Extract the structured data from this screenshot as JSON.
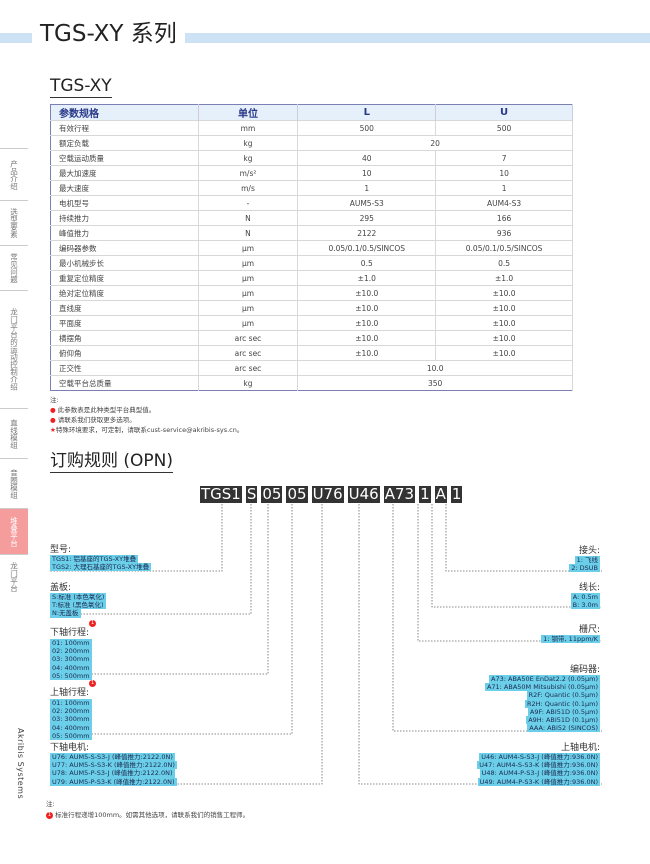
{
  "header": {
    "title": "TGS-XY 系列",
    "subtitle": "TGS-XY"
  },
  "sidebar": [
    {
      "label": "产品介绍"
    },
    {
      "label": "选型要素"
    },
    {
      "label": "常见问题"
    },
    {
      "label": "龙门平台的运动控制介绍"
    },
    {
      "label": "直线模组"
    },
    {
      "label": "音圈模组"
    },
    {
      "label": "堆叠平台",
      "active": true
    },
    {
      "label": "龙门平台"
    }
  ],
  "brand": "Akribis Systems",
  "table": {
    "headers": [
      "参数规格",
      "单位",
      "L",
      "U"
    ],
    "rows": [
      [
        "有效行程",
        "mm",
        "500",
        "500"
      ],
      [
        "额定负载",
        "kg",
        "20"
      ],
      [
        "空载运动质量",
        "kg",
        "40",
        "7"
      ],
      [
        "最大加速度",
        "m/s²",
        "10",
        "10"
      ],
      [
        "最大速度",
        "m/s",
        "1",
        "1"
      ],
      [
        "电机型号",
        "-",
        "AUM5-S3",
        "AUM4-S3"
      ],
      [
        "持续推力",
        "N",
        "295",
        "166"
      ],
      [
        "峰值推力",
        "N",
        "2122",
        "936"
      ],
      [
        "编码器参数",
        "μm",
        "0.05/0.1/0.5/SINCOS",
        "0.05/0.1/0.5/SINCOS"
      ],
      [
        "最小机械步长",
        "μm",
        "0.5",
        "0.5"
      ],
      [
        "重复定位精度",
        "μm",
        "±1.0",
        "±1.0"
      ],
      [
        "绝对定位精度",
        "μm",
        "±10.0",
        "±10.0"
      ],
      [
        "直线度",
        "μm",
        "±10.0",
        "±10.0"
      ],
      [
        "平面度",
        "μm",
        "±10.0",
        "±10.0"
      ],
      [
        "横摆角",
        "arc sec",
        "±10.0",
        "±10.0"
      ],
      [
        "俯仰角",
        "arc sec",
        "±10.0",
        "±10.0"
      ],
      [
        "正交性",
        "arc sec",
        "10.0"
      ],
      [
        "空载平台总质量",
        "kg",
        "350"
      ]
    ]
  },
  "notes": {
    "title": "注:",
    "items": [
      "此参数表是此种类型平台典型值。",
      "请联系我们获取更多选项。",
      "特殊环境要求，可定制，请联系cust-service@akribis-sys.cn。"
    ]
  },
  "opn": {
    "title": "订购规则 (OPN)",
    "codes": [
      "TGS1",
      "S",
      "05",
      "05",
      "U76",
      "U46",
      "A73",
      "1",
      "A",
      "1"
    ],
    "left": [
      {
        "label": "型号:",
        "options": [
          "TGS1: 铝基座的TGS-XY堆叠",
          "TGS2: 大理石基座的TGS-XY堆叠"
        ]
      },
      {
        "label": "盖板:",
        "options": [
          "S:标准 (本色氧化)",
          "T:标准 (黑色氧化)",
          "N:无盖板"
        ]
      },
      {
        "label": "下轴行程:",
        "note": "1",
        "options": [
          "01: 100mm",
          "02: 200mm",
          "03: 300mm",
          "04: 400mm",
          "05: 500mm"
        ]
      },
      {
        "label": "上轴行程:",
        "note": "1",
        "options": [
          "01: 100mm",
          "02: 200mm",
          "03: 300mm",
          "04: 400mm",
          "05: 500mm"
        ]
      },
      {
        "label": "下轴电机:",
        "options": [
          "U76: AUM5-S-S3-J (峰值推力:2122.0N)",
          "U77: AUM5-S-S3-K (峰值推力:2122.0N)",
          "U78: AUM5-P-S3-J (峰值推力:2122.0N)",
          "U79: AUM5-P-S3-K (峰值推力:2122.0N)"
        ]
      }
    ],
    "right": [
      {
        "label": "接头:",
        "options": [
          "1: 飞线",
          "2: DSUB"
        ]
      },
      {
        "label": "线长:",
        "options": [
          "A: 0.5m",
          "B: 3.0m"
        ]
      },
      {
        "label": "栅尺:",
        "options": [
          "1: 钢带, 11ppm/K"
        ]
      },
      {
        "label": "编码器:",
        "options": [
          "A73: ABA50E EnDat2.2 (0.05μm)",
          "A71: ABA50M Mitsubishi (0.05μm)",
          "R2F: Quantic (0.5μm)",
          "R2H: Quantic (0.1μm)",
          "A9F: ABI51D (0.5μm)",
          "A9H: ABI51D (0.1μm)",
          "AAA: ABI52 (SINCOS)"
        ]
      },
      {
        "label": "上轴电机:",
        "options": [
          "U46: AUM4-S-S3-J (峰值推力:936.0N)",
          "U47: AUM4-S-S3-K (峰值推力:936.0N)",
          "U48: AUM4-P-S3-J (峰值推力:936.0N)",
          "U49: AUM4-P-S3-K (峰值推力:936.0N)"
        ]
      }
    ],
    "footnote_title": "注:",
    "footnote_marker": "1",
    "footnote": "标准行程递增100mm。如需其他选项，请联系我们的销售工程师。"
  },
  "colors": {
    "band": "#cde3f5",
    "option_bg": "#6ccfe9",
    "active_side": "#f59c9c",
    "table_border": "#7a7fb4"
  }
}
